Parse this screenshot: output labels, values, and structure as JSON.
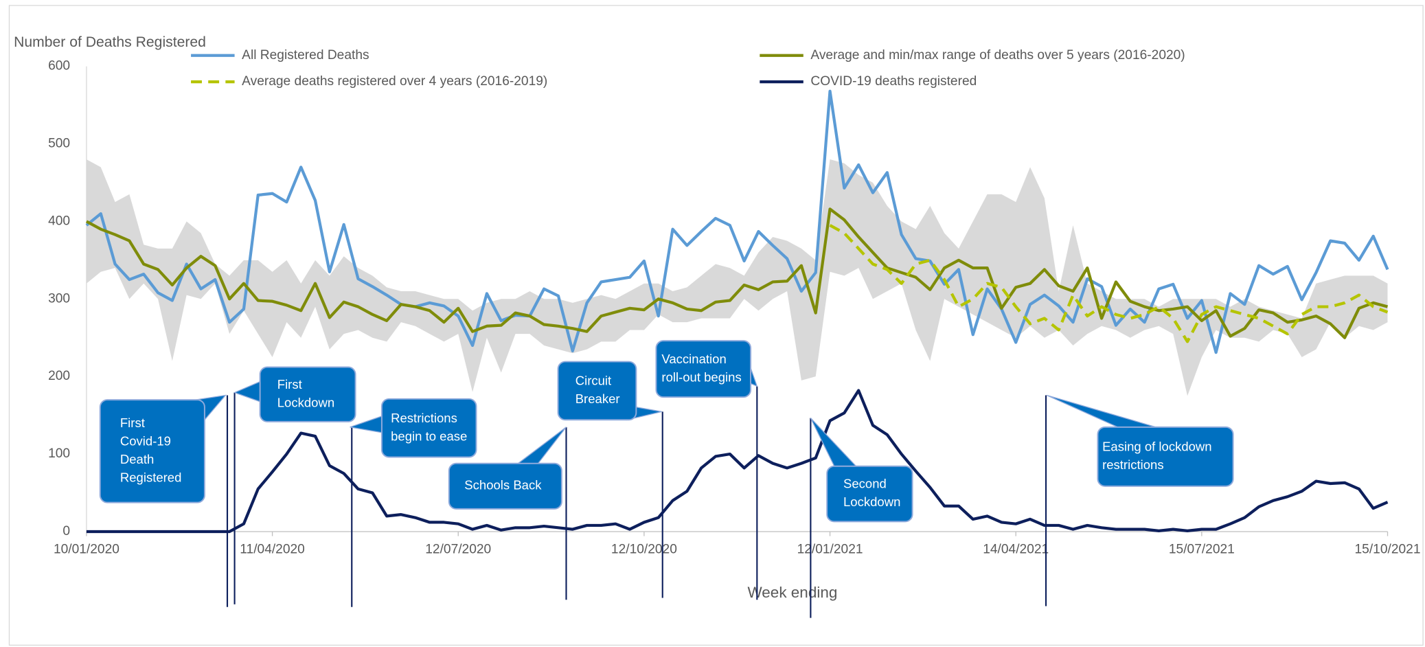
{
  "chart_data": {
    "type": "line",
    "y_label": "Number of Deaths Registered",
    "x_label": "Week ending",
    "categories": [
      "10/01/2020",
      null,
      null,
      null,
      null,
      null,
      null,
      null,
      null,
      null,
      null,
      null,
      null,
      "11/04/2020",
      null,
      null,
      null,
      null,
      null,
      null,
      null,
      null,
      null,
      null,
      null,
      null,
      "12/07/2020",
      null,
      null,
      null,
      null,
      null,
      null,
      null,
      null,
      null,
      null,
      null,
      null,
      "12/10/2020",
      null,
      null,
      null,
      null,
      null,
      null,
      null,
      null,
      null,
      null,
      null,
      null,
      "12/01/2021",
      null,
      null,
      null,
      null,
      null,
      null,
      null,
      null,
      null,
      null,
      null,
      null,
      "14/04/2021",
      null,
      null,
      null,
      null,
      null,
      null,
      null,
      null,
      null,
      null,
      null,
      null,
      "15/07/2021",
      null,
      null,
      null,
      null,
      null,
      null,
      null,
      null,
      null,
      null,
      null,
      null,
      "15/10/2021"
    ],
    "ylim": [
      0,
      600
    ],
    "yticks": [
      0,
      100,
      200,
      300,
      400,
      500,
      600
    ],
    "range": {
      "color": "#d9d9d9",
      "max": [
        480,
        470,
        425,
        435,
        370,
        365,
        365,
        400,
        385,
        345,
        330,
        350,
        350,
        335,
        350,
        320,
        350,
        330,
        355,
        340,
        330,
        315,
        310,
        310,
        305,
        300,
        300,
        285,
        295,
        300,
        300,
        310,
        300,
        300,
        295,
        300,
        305,
        300,
        310,
        320,
        320,
        310,
        315,
        330,
        345,
        340,
        330,
        360,
        380,
        375,
        365,
        350,
        480,
        475,
        460,
        450,
        420,
        400,
        390,
        420,
        385,
        365,
        400,
        435,
        435,
        425,
        470,
        430,
        310,
        395,
        320,
        310,
        300,
        300,
        300,
        290,
        300,
        300,
        300,
        300,
        290,
        300,
        290,
        285,
        280,
        275,
        320,
        325,
        330,
        330,
        330,
        320
      ],
      "min": [
        320,
        335,
        340,
        300,
        320,
        300,
        220,
        305,
        300,
        320,
        255,
        285,
        255,
        225,
        270,
        250,
        290,
        235,
        255,
        260,
        250,
        245,
        270,
        265,
        255,
        245,
        255,
        180,
        250,
        205,
        255,
        255,
        240,
        235,
        230,
        235,
        245,
        245,
        260,
        260,
        280,
        270,
        270,
        275,
        275,
        275,
        300,
        285,
        300,
        310,
        195,
        200,
        335,
        330,
        340,
        300,
        310,
        320,
        260,
        220,
        300,
        290,
        280,
        270,
        260,
        250,
        265,
        250,
        260,
        240,
        255,
        265,
        260,
        250,
        260,
        265,
        255,
        175,
        225,
        260,
        250,
        250,
        245,
        260,
        255,
        225,
        235,
        270,
        250,
        265,
        260,
        270
      ]
    },
    "series": [
      {
        "name": "All Registered Deaths",
        "color": "#5b9bd5",
        "style": "solid",
        "values": [
          395,
          410,
          345,
          325,
          332,
          308,
          298,
          345,
          313,
          325,
          270,
          287,
          434,
          436,
          425,
          470,
          427,
          335,
          396,
          326,
          316,
          305,
          293,
          290,
          295,
          291,
          278,
          240,
          307,
          272,
          279,
          278,
          313,
          304,
          233,
          295,
          322,
          325,
          328,
          349,
          278,
          390,
          369,
          387,
          404,
          395,
          349,
          387,
          369,
          352,
          310,
          334,
          568,
          443,
          473,
          437,
          463,
          383,
          352,
          349,
          319,
          338,
          254,
          313,
          287,
          244,
          293,
          305,
          291,
          270,
          326,
          316,
          266,
          287,
          270,
          313,
          319,
          275,
          298,
          231,
          307,
          293,
          343,
          332,
          342,
          299,
          334,
          375,
          372,
          350,
          381,
          338
        ]
      },
      {
        "name": "Average and min/max range of deaths over 5 years (2016-2020)",
        "color": "#7f8c0a",
        "style": "solid",
        "values": [
          400,
          390,
          383,
          375,
          345,
          338,
          318,
          340,
          355,
          343,
          300,
          320,
          298,
          297,
          292,
          285,
          320,
          276,
          296,
          290,
          280,
          272,
          293,
          290,
          285,
          270,
          288,
          258,
          265,
          266,
          282,
          278,
          267,
          265,
          262,
          258,
          278,
          283,
          288,
          286,
          300,
          295,
          287,
          285,
          296,
          298,
          318,
          312,
          322,
          323,
          343,
          282,
          416,
          402,
          380,
          360,
          340,
          334,
          328,
          312,
          340,
          350,
          340,
          340,
          288,
          315,
          320,
          338,
          317,
          310,
          340,
          275,
          322,
          297,
          290,
          285,
          287,
          290,
          272,
          285,
          252,
          262,
          286,
          282,
          270,
          273,
          278,
          268,
          250,
          288,
          295,
          290
        ]
      },
      {
        "name": "Average deaths registered over 4 years (2016-2019)",
        "color": "#b5c400",
        "style": "dashed",
        "values": [
          null,
          null,
          null,
          null,
          null,
          null,
          null,
          null,
          null,
          null,
          null,
          null,
          null,
          null,
          null,
          null,
          null,
          null,
          null,
          null,
          null,
          null,
          null,
          null,
          null,
          null,
          null,
          null,
          null,
          null,
          null,
          null,
          null,
          null,
          null,
          null,
          null,
          null,
          null,
          null,
          null,
          null,
          null,
          null,
          null,
          null,
          null,
          null,
          null,
          null,
          null,
          null,
          395,
          385,
          365,
          345,
          338,
          320,
          345,
          350,
          325,
          290,
          300,
          320,
          315,
          290,
          268,
          275,
          260,
          305,
          278,
          290,
          280,
          275,
          280,
          290,
          275,
          245,
          280,
          290,
          285,
          280,
          275,
          265,
          255,
          280,
          290,
          290,
          295,
          305,
          290,
          283
        ]
      },
      {
        "name": "COVID-19 deaths registered",
        "color": "#0d1f5c",
        "style": "solid",
        "values": [
          0,
          0,
          0,
          0,
          0,
          0,
          0,
          0,
          0,
          0,
          0,
          10,
          55,
          77,
          100,
          127,
          123,
          85,
          75,
          55,
          50,
          20,
          22,
          18,
          12,
          12,
          10,
          3,
          8,
          2,
          5,
          5,
          7,
          5,
          3,
          8,
          8,
          10,
          3,
          12,
          18,
          40,
          52,
          82,
          97,
          100,
          82,
          98,
          88,
          82,
          88,
          95,
          143,
          153,
          182,
          137,
          125,
          100,
          78,
          57,
          33,
          33,
          16,
          20,
          12,
          10,
          16,
          8,
          8,
          3,
          8,
          5,
          3,
          3,
          3,
          1,
          3,
          1,
          3,
          3,
          10,
          18,
          32,
          40,
          45,
          52,
          65,
          62,
          63,
          55,
          30,
          38
        ]
      }
    ],
    "annotations": [
      {
        "lines": [
          "First",
          "Covid-19",
          "Death",
          "Registered"
        ]
      },
      {
        "lines": [
          "First",
          "Lockdown"
        ]
      },
      {
        "lines": [
          "Restrictions",
          "begin to ease"
        ]
      },
      {
        "lines": [
          "Schools Back"
        ]
      },
      {
        "lines": [
          "Circuit",
          "Breaker"
        ]
      },
      {
        "lines": [
          "Vaccination",
          "roll-out  begins"
        ]
      },
      {
        "lines": [
          "Second",
          "Lockdown"
        ]
      },
      {
        "lines": [
          "Easing of lockdown",
          "restrictions"
        ]
      }
    ]
  }
}
